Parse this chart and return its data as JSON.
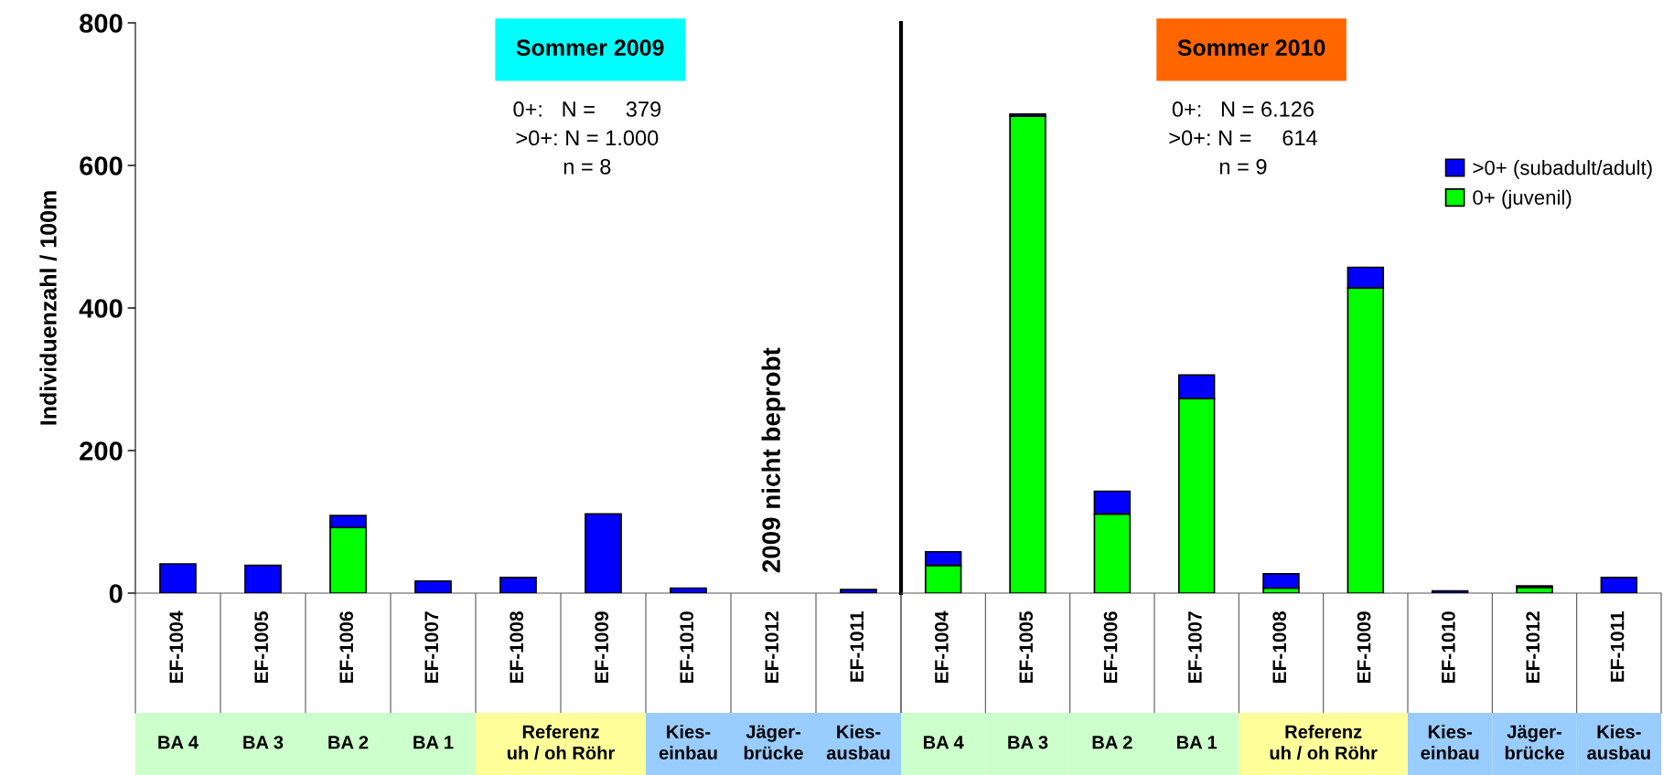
{
  "chart_data": [
    {
      "type": "bar",
      "title": "Sommer 2009",
      "subtitle": "0+:   N =     379\n>0+: N = 1.000\nn = 8",
      "ylabel": "Individuenzahl / 100m",
      "categories": [
        "EF-1004",
        "EF-1005",
        "EF-1006",
        "EF-1007",
        "EF-1008",
        "EF-1009",
        "EF-1010",
        "EF-1012",
        "EF-1011"
      ],
      "stacked": true,
      "series": [
        {
          "color": "#00ff00",
          "values": [
            0,
            0,
            92,
            0,
            null,
            0,
            0,
            null,
            0
          ]
        },
        {
          "color": "#0000ff",
          "values": [
            41,
            39,
            17,
            17,
            22,
            111,
            7,
            null,
            5
          ]
        }
      ],
      "ylim": [
        0,
        800
      ],
      "yticks": [
        0,
        200,
        400,
        600,
        800
      ],
      "grid": false,
      "legend": false,
      "annotations": [
        "2009 nicht beprobt",
        "BA 4",
        "BA 3",
        "BA 2",
        "BA 1",
        "Referenz\nuh / oh Röhr",
        "Kies-\neinbau",
        "Jäger-\nbrücke",
        "Kies-\nausbau"
      ]
    },
    {
      "type": "bar",
      "title": "Sommer 2010",
      "subtitle": "0+:   N = 6.126\n>0+: N =     614\nn = 9",
      "categories": [
        "EF-1004",
        "EF-1005",
        "EF-1006",
        "EF-1007",
        "EF-1008",
        "EF-1009",
        "EF-1010",
        "EF-1012",
        "EF-1011"
      ],
      "stacked": true,
      "series": [
        {
          "name": "0+ (juvenil)",
          "color": "#00ff00",
          "values": [
            39,
            669,
            111,
            273,
            7,
            428,
            null,
            8,
            0
          ]
        },
        {
          "name": ">0+ (subadult/adult)",
          "color": "#0000ff",
          "values": [
            19,
            3,
            32,
            33,
            20,
            29,
            3,
            2,
            22
          ]
        }
      ],
      "ylim": [
        0,
        800
      ],
      "tick_labels": "x",
      "grid": false,
      "legend": "top right",
      "annotations": [
        "BA 4",
        "BA 3",
        "BA 2",
        "BA 1",
        "Referenz\nuh / oh Röhr",
        "Kies-\neinbau",
        "Jäger-\nbrücke",
        "Kies-\nausbau"
      ]
    }
  ]
}
